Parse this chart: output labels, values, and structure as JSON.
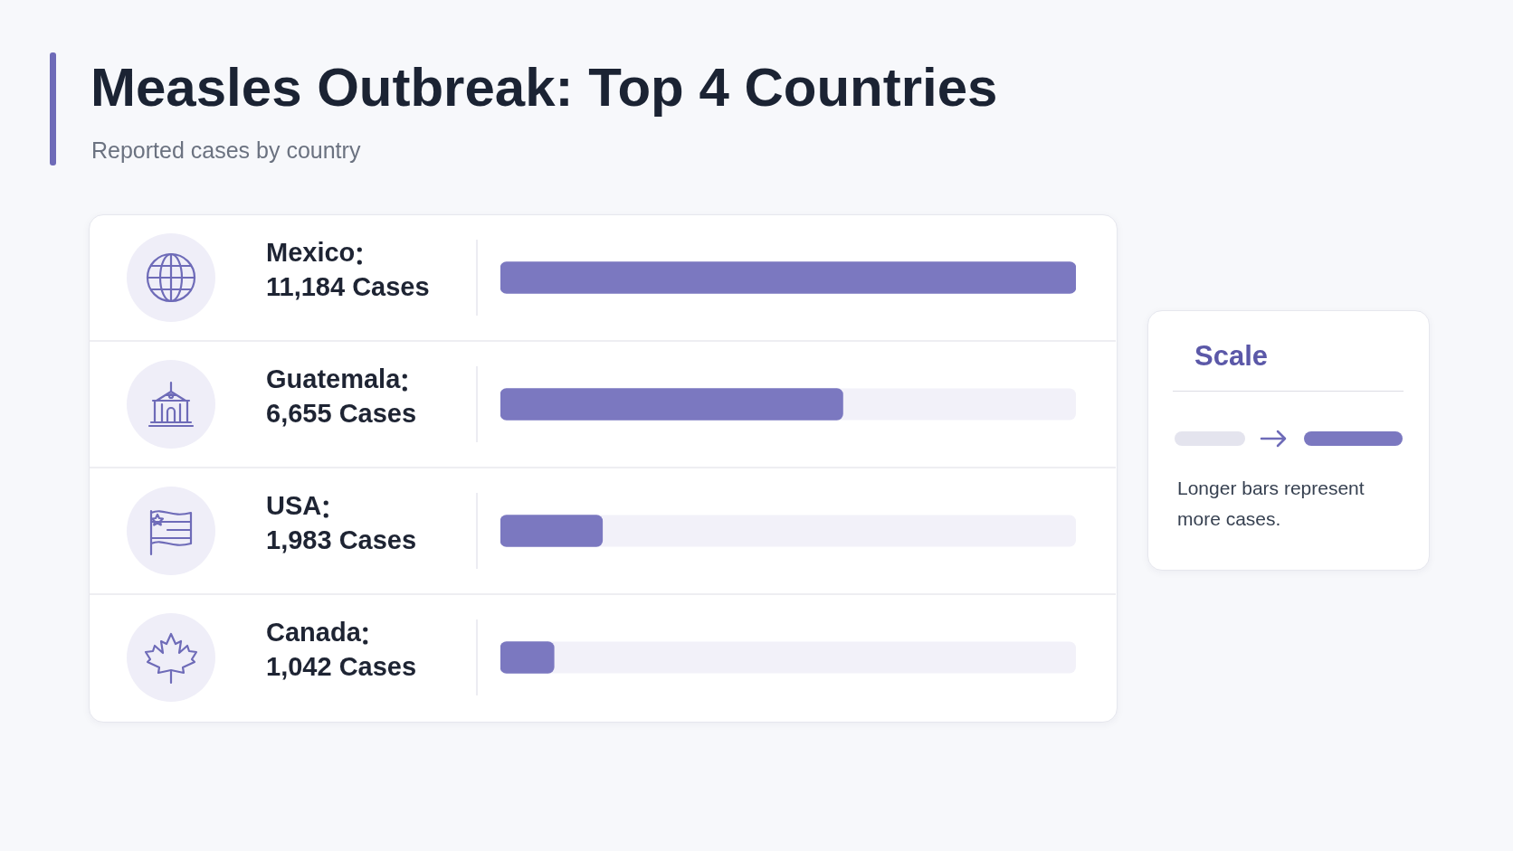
{
  "chart_data": {
    "type": "bar",
    "orientation": "horizontal",
    "title": "Measles Outbreak: Top 4 Countries",
    "subtitle": "Reported cases by country",
    "categories": [
      "Mexico",
      "Guatemala",
      "USA",
      "Canada"
    ],
    "values": [
      11184,
      6655,
      1983,
      1042
    ],
    "value_labels": [
      "11,184 Cases",
      "6,655 Cases",
      "1,983 Cases",
      "1,042 Cases"
    ],
    "color": "#7b78c0",
    "annotations": [
      "Scale",
      "Longer bars represent more cases."
    ]
  }
}
